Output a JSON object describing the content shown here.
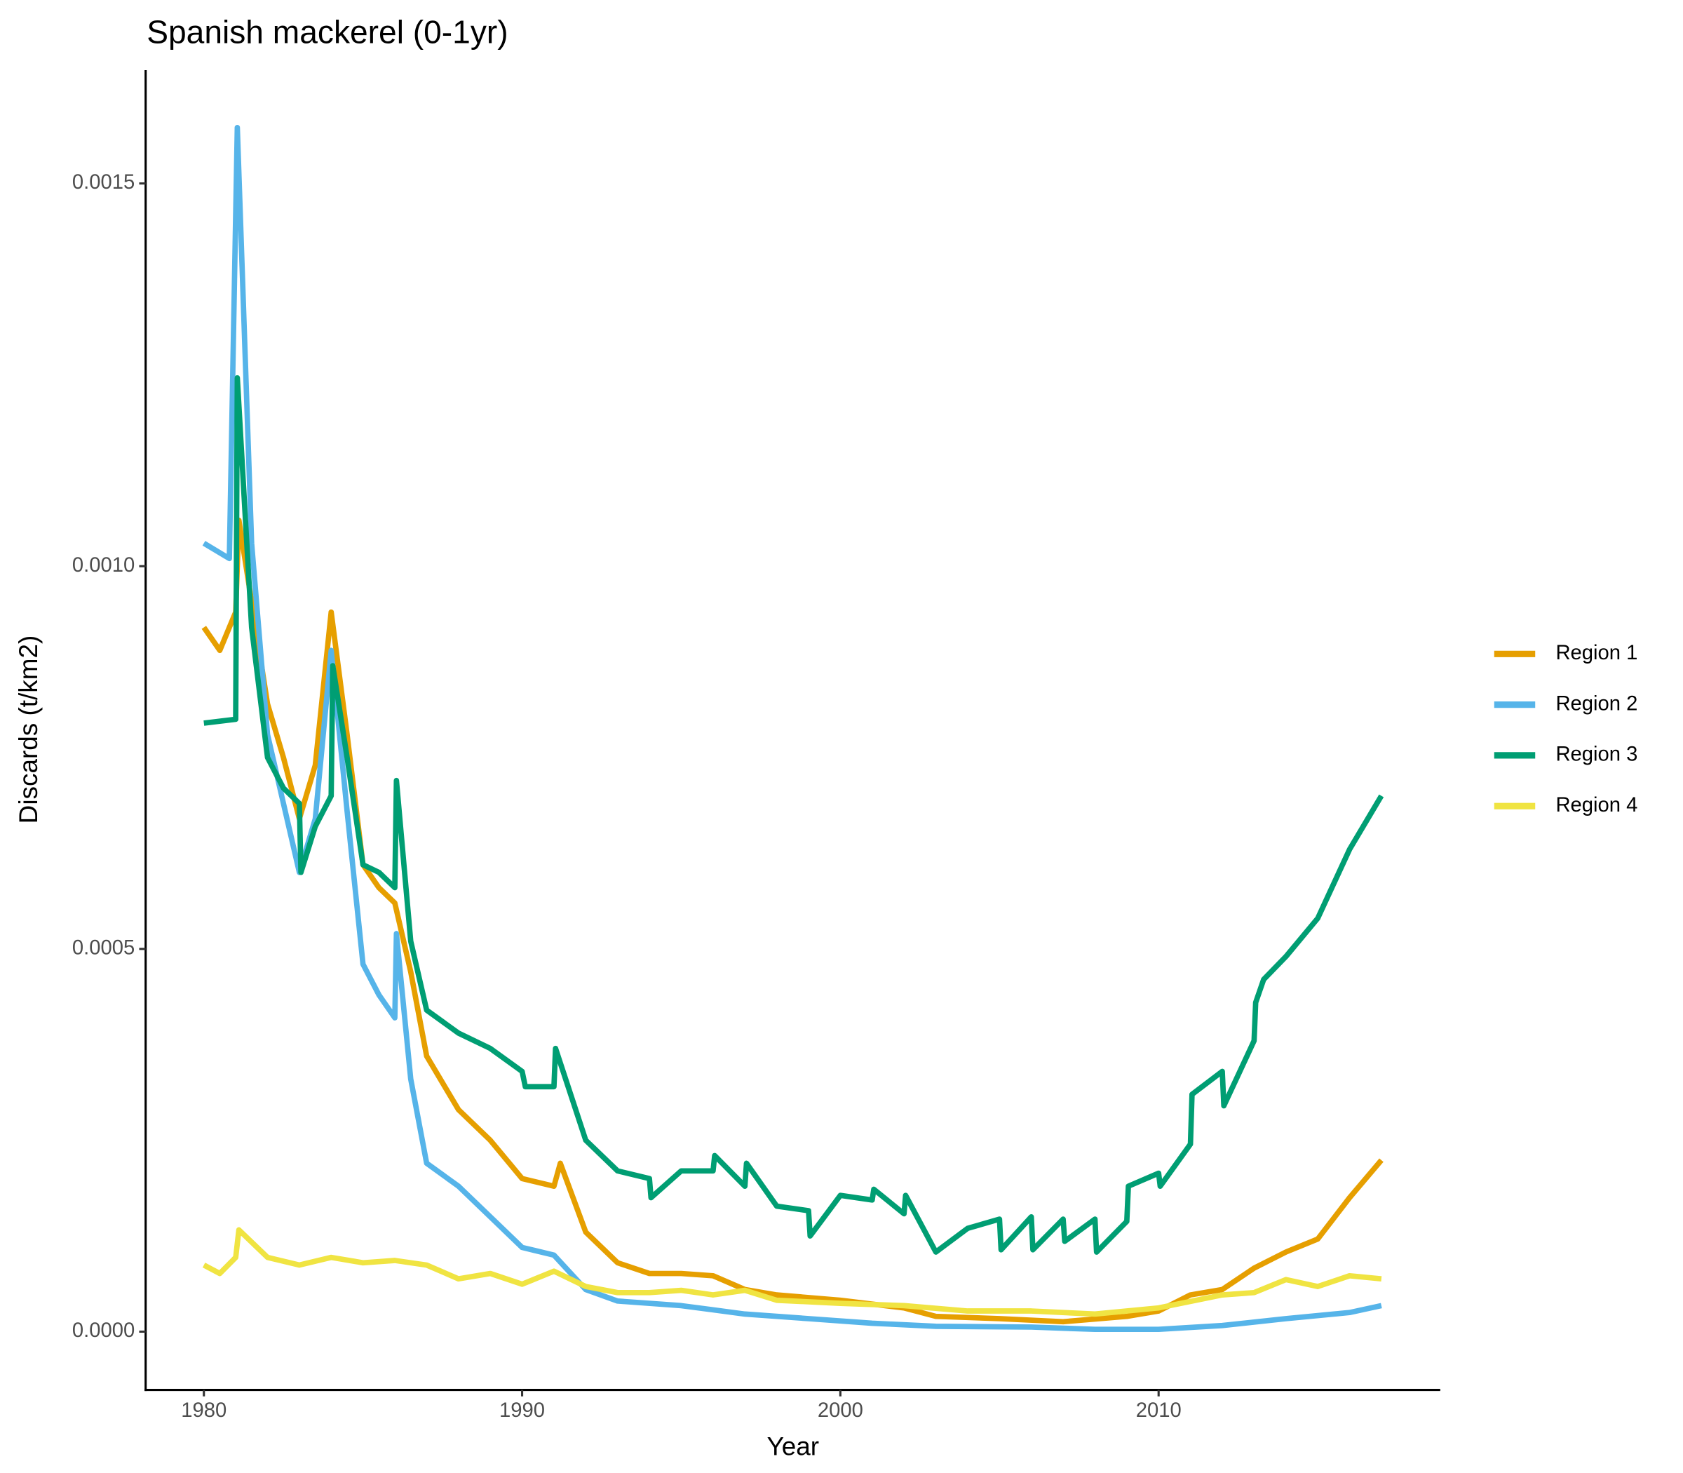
{
  "chart_data": {
    "type": "line",
    "title": "Spanish mackerel (0-1yr)",
    "x_label": "Year",
    "y_label": "Discards (t/km2)",
    "xlim": [
      1978.17,
      2018.85
    ],
    "xticks": [
      1980,
      1990,
      2000,
      2010
    ],
    "ylim": [
      -7.61e-05,
      0.001648
    ],
    "yticks": [
      {
        "value": 0,
        "label": "0.0000"
      },
      {
        "value": 0.0005,
        "label": "0.0005"
      },
      {
        "value": 0.001,
        "label": "0.0010"
      },
      {
        "value": 0.0015,
        "label": "0.0015"
      }
    ],
    "grid": false,
    "legend": "right",
    "series": [
      {
        "name": "Region 1",
        "color": "#E69F00",
        "x": [
          1980,
          1980.5,
          1981,
          1981.1,
          1982,
          1982.5,
          1983,
          1983.5,
          1984,
          1984.5,
          1985,
          1985.5,
          1986,
          1986.5,
          1987,
          1988,
          1989,
          1990,
          1991,
          1991.2,
          1992,
          1993,
          1994,
          1995,
          1996,
          1997,
          1998,
          2000,
          2002,
          2003,
          2005,
          2007,
          2009,
          2010,
          2011,
          2012,
          2013,
          2014,
          2015,
          2016,
          2017
        ],
        "values": [
          0.00092,
          0.00089,
          0.00094,
          0.00106,
          0.00082,
          0.00075,
          0.00067,
          0.00074,
          0.00094,
          0.00078,
          0.00061,
          0.00058,
          0.00056,
          0.00047,
          0.00036,
          0.00029,
          0.00025,
          0.0002,
          0.00019,
          0.00022,
          0.00013,
          9e-05,
          7.6e-05,
          7.6e-05,
          7.3e-05,
          5.5e-05,
          4.8e-05,
          4.1e-05,
          3.1e-05,
          2e-05,
          1.7e-05,
          1.3e-05,
          2e-05,
          2.7e-05,
          4.8e-05,
          5.5e-05,
          8.3e-05,
          0.000104,
          0.000121,
          0.000175,
          0.000224
        ]
      },
      {
        "name": "Region 2",
        "color": "#56B4E9",
        "x": [
          1980,
          1980.8,
          1981.05,
          1981.5,
          1982,
          1983,
          1983.5,
          1984,
          1984.5,
          1985,
          1985.5,
          1986,
          1986.05,
          1986.5,
          1987,
          1988,
          1989,
          1990,
          1991,
          1992,
          1993,
          1995,
          1997,
          1999,
          2001,
          2003,
          2006,
          2008,
          2010,
          2012,
          2014,
          2016,
          2017
        ],
        "values": [
          0.00103,
          0.00101,
          0.001573,
          0.00103,
          0.00078,
          0.0006,
          0.00067,
          0.00089,
          0.00068,
          0.00048,
          0.00044,
          0.00041,
          0.00052,
          0.00033,
          0.00022,
          0.00019,
          0.00015,
          0.00011,
          0.0001,
          5.5e-05,
          4e-05,
          3.4e-05,
          2.3e-05,
          1.7e-05,
          1.1e-05,
          7e-06,
          6e-06,
          3e-06,
          3e-06,
          8e-06,
          1.7e-05,
          2.5e-05,
          3.4e-05
        ]
      },
      {
        "name": "Region 3",
        "color": "#009E73",
        "x": [
          1980,
          1981,
          1981.05,
          1981.5,
          1982,
          1982.5,
          1983,
          1983.05,
          1983.5,
          1984,
          1984.05,
          1984.5,
          1985,
          1985.5,
          1986,
          1986.05,
          1986.5,
          1987,
          1988,
          1989,
          1990,
          1990.1,
          1991,
          1991.05,
          1992,
          1993,
          1994,
          1994.05,
          1995,
          1996,
          1996.05,
          1997,
          1997.05,
          1998,
          1999,
          1999.05,
          2000,
          2001,
          2001.05,
          2002,
          2002.05,
          2003,
          2004,
          2005,
          2005.05,
          2006,
          2006.05,
          2007,
          2007.05,
          2008,
          2008.05,
          2009,
          2009.05,
          2010,
          2010.05,
          2011,
          2011.05,
          2012,
          2012.05,
          2013,
          2013.05,
          2013.3,
          2014,
          2015,
          2016,
          2017
        ],
        "values": [
          0.000795,
          0.0008,
          0.001246,
          0.00092,
          0.00075,
          0.00071,
          0.00069,
          0.0006,
          0.00066,
          0.0007,
          0.00087,
          0.00075,
          0.00061,
          0.0006,
          0.00058,
          0.00072,
          0.00051,
          0.00042,
          0.00039,
          0.00037,
          0.00034,
          0.00032,
          0.00032,
          0.00037,
          0.00025,
          0.00021,
          0.0002,
          0.000175,
          0.00021,
          0.00021,
          0.00023,
          0.00019,
          0.00022,
          0.000164,
          0.000158,
          0.000125,
          0.000178,
          0.000172,
          0.000186,
          0.000154,
          0.000178,
          0.000104,
          0.000135,
          0.000147,
          0.000107,
          0.00015,
          0.000107,
          0.000147,
          0.000118,
          0.000147,
          0.000104,
          0.000144,
          0.00019,
          0.000207,
          0.00019,
          0.000245,
          0.00031,
          0.00034,
          0.000295,
          0.00038,
          0.00043,
          0.00046,
          0.00049,
          0.00054,
          0.00063,
          0.0007
        ]
      },
      {
        "name": "Region 4",
        "color": "#F0E442",
        "x": [
          1980,
          1980.5,
          1981,
          1981.1,
          1982,
          1983,
          1984,
          1985,
          1986,
          1987,
          1988,
          1989,
          1990,
          1991,
          1992,
          1993,
          1994,
          1995,
          1996,
          1997,
          1998,
          2000,
          2002,
          2004,
          2006,
          2008,
          2010,
          2012,
          2013,
          2014,
          2015,
          2016,
          2017
        ],
        "values": [
          8.7e-05,
          7.6e-05,
          9.7e-05,
          0.000133,
          9.7e-05,
          8.7e-05,
          9.7e-05,
          9e-05,
          9.3e-05,
          8.7e-05,
          6.9e-05,
          7.6e-05,
          6.2e-05,
          7.9e-05,
          5.9e-05,
          5.1e-05,
          5.1e-05,
          5.4e-05,
          4.8e-05,
          5.4e-05,
          4.1e-05,
          3.7e-05,
          3.4e-05,
          2.7e-05,
          2.7e-05,
          2.3e-05,
          3.1e-05,
          4.8e-05,
          5.1e-05,
          6.8e-05,
          5.9e-05,
          7.3e-05,
          6.9e-05
        ]
      }
    ]
  }
}
